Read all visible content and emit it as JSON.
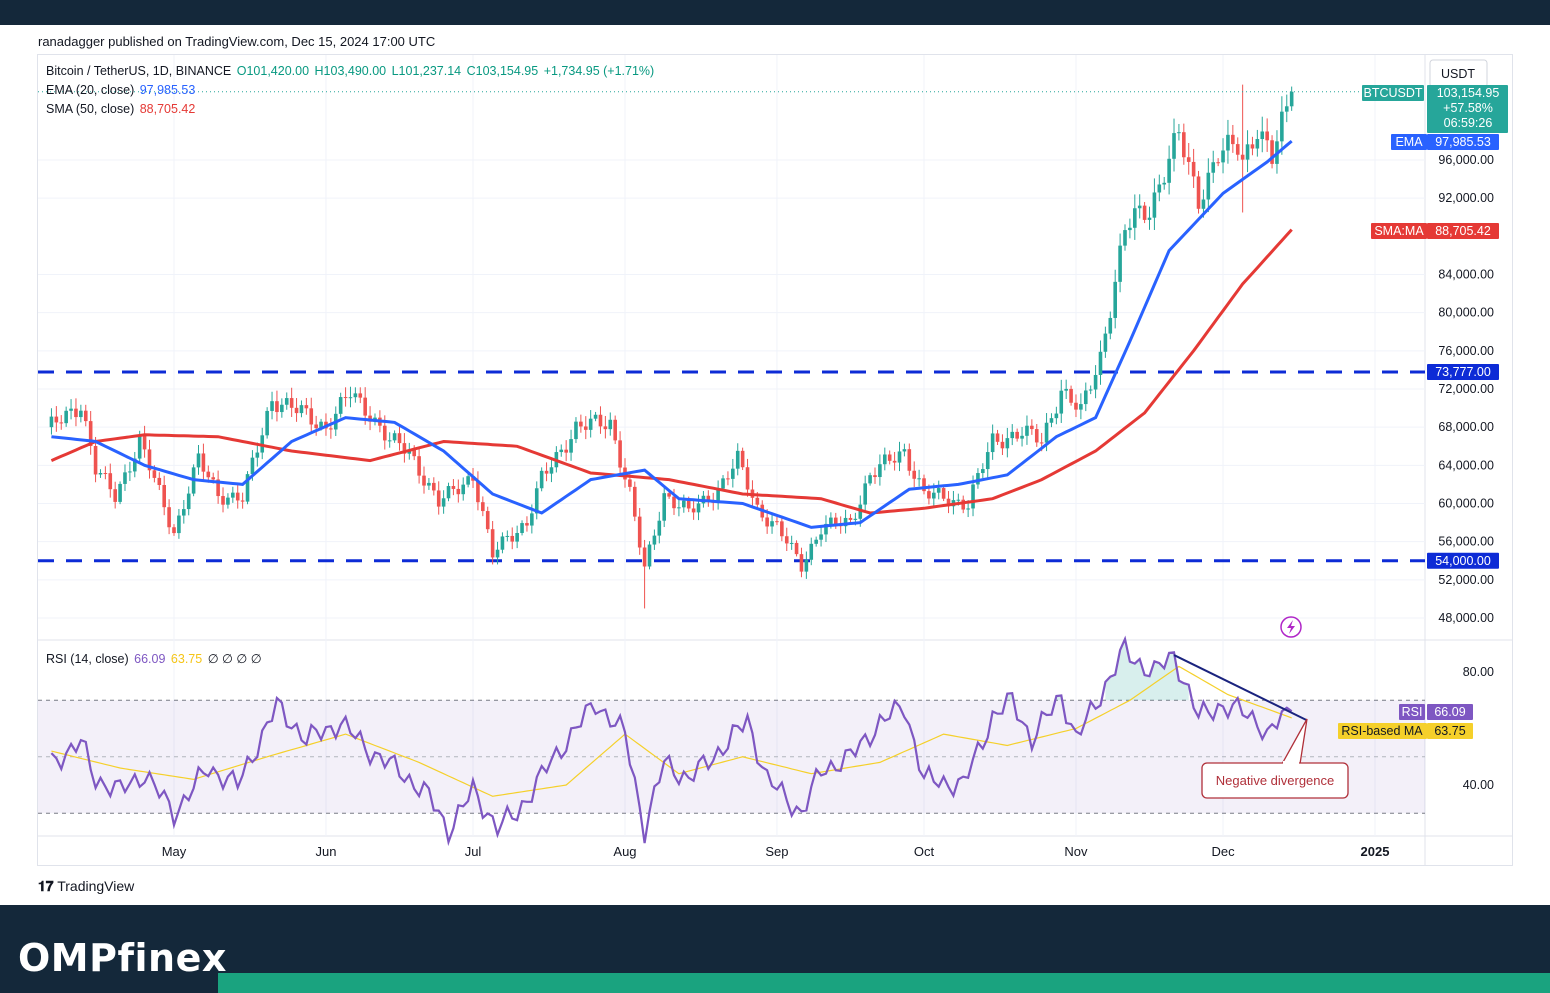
{
  "header": {
    "published": "ranadagger published on TradingView.com, Dec 15, 2024 17:00 UTC"
  },
  "legend": {
    "symbol": "Bitcoin / TetherUS, 1D, BINANCE",
    "open": "O101,420.00",
    "high": "H103,490.00",
    "low": "L101,237.14",
    "close": "C103,154.95",
    "change": "+1,734.95 (+1.71%)",
    "ema_label": "EMA (20, close)",
    "ema_value": "97,985.53",
    "sma_label": "SMA (50, close)",
    "sma_value": "88,705.42",
    "rsi_label": "RSI (14, close)",
    "rsi_value": "66.09",
    "rsi_ma_value": "63.75",
    "rsi_extra": "∅ ∅ ∅ ∅"
  },
  "price_axis": {
    "currency": "USDT",
    "ticks": [
      "96,000.00",
      "92,000.00",
      "84,000.00",
      "80,000.00",
      "76,000.00",
      "72,000.00",
      "68,000.00",
      "64,000.00",
      "60,000.00",
      "56,000.00",
      "52,000.00",
      "48,000.00"
    ],
    "tick_values": [
      96000,
      92000,
      84000,
      80000,
      76000,
      72000,
      68000,
      64000,
      60000,
      56000,
      52000,
      48000
    ]
  },
  "price_tags": {
    "symbol_tag": "BTCUSDT",
    "last_price": "103,154.95",
    "pct_change": "+57.58%",
    "countdown": "06:59:26",
    "ema_tag": "EMA",
    "ema_value": "97,985.53",
    "sma_tag": "SMA:MA",
    "sma_value": "88,705.42",
    "resistance": "73,777.00",
    "support": "54,000.00"
  },
  "rsi_axis": {
    "ticks": [
      "80.00",
      "40.00"
    ],
    "rsi_tag": "RSI",
    "rsi_value": "66.09",
    "ma_tag": "RSI-based MA",
    "ma_value": "63.75"
  },
  "time_axis": [
    "May",
    "Jun",
    "Jul",
    "Aug",
    "Sep",
    "Oct",
    "Nov",
    "Dec",
    "2025"
  ],
  "annotation": {
    "divergence": "Negative divergence"
  },
  "footer": {
    "tv": "TradingView",
    "brand": "OMPfinex"
  },
  "colors": {
    "up": "#26a69a",
    "down": "#ef5350",
    "ema": "#2962ff",
    "sma": "#e53935",
    "level": "#0d2bd6",
    "rsi": "#7e57c2",
    "rsi_ma": "#f5d02a",
    "trend": "#1a237e"
  },
  "chart_data": {
    "type": "candlestick",
    "title": "Bitcoin / TetherUS, 1D, BINANCE",
    "x_range": [
      "2024-04-06",
      "2024-12-15"
    ],
    "ylim": [
      46000,
      106000
    ],
    "horizontal_levels": [
      73777,
      54000
    ],
    "price_path": [
      [
        "2024-04-06",
        68000
      ],
      [
        "2024-04-12",
        70500
      ],
      [
        "2024-04-15",
        63500
      ],
      [
        "2024-04-19",
        60800
      ],
      [
        "2024-04-24",
        66500
      ],
      [
        "2024-05-01",
        57000
      ],
      [
        "2024-05-06",
        64500
      ],
      [
        "2024-05-10",
        61000
      ],
      [
        "2024-05-15",
        60500
      ],
      [
        "2024-05-21",
        71000
      ],
      [
        "2024-05-27",
        69500
      ],
      [
        "2024-06-01",
        68000
      ],
      [
        "2024-06-06",
        71500
      ],
      [
        "2024-06-10",
        69500
      ],
      [
        "2024-06-14",
        66500
      ],
      [
        "2024-06-18",
        65500
      ],
      [
        "2024-06-24",
        60000
      ],
      [
        "2024-07-01",
        63000
      ],
      [
        "2024-07-05",
        54500
      ],
      [
        "2024-07-08",
        56500
      ],
      [
        "2024-07-12",
        58000
      ],
      [
        "2024-07-15",
        62500
      ],
      [
        "2024-07-22",
        68000
      ],
      [
        "2024-07-29",
        68500
      ],
      [
        "2024-08-02",
        61000
      ],
      [
        "2024-08-05",
        53000
      ],
      [
        "2024-08-09",
        61000
      ],
      [
        "2024-08-14",
        59000
      ],
      [
        "2024-08-20",
        61500
      ],
      [
        "2024-08-24",
        64500
      ],
      [
        "2024-08-28",
        59500
      ],
      [
        "2024-09-01",
        57500
      ],
      [
        "2024-09-06",
        53500
      ],
      [
        "2024-09-10",
        57500
      ],
      [
        "2024-09-16",
        58000
      ],
      [
        "2024-09-20",
        63000
      ],
      [
        "2024-09-27",
        65500
      ],
      [
        "2024-10-01",
        61000
      ],
      [
        "2024-10-10",
        60000
      ],
      [
        "2024-10-15",
        66500
      ],
      [
        "2024-10-21",
        67500
      ],
      [
        "2024-10-25",
        66500
      ],
      [
        "2024-10-29",
        72000
      ],
      [
        "2024-11-02",
        69500
      ],
      [
        "2024-11-06",
        75500
      ],
      [
        "2024-11-11",
        88500
      ],
      [
        "2024-11-13",
        90000
      ],
      [
        "2024-11-16",
        91000
      ],
      [
        "2024-11-22",
        98500
      ],
      [
        "2024-11-26",
        92000
      ],
      [
        "2024-11-30",
        96500
      ],
      [
        "2024-12-04",
        97500
      ],
      [
        "2024-12-05",
        96000
      ],
      [
        "2024-12-08",
        99500
      ],
      [
        "2024-12-11",
        96000
      ],
      [
        "2024-12-15",
        103154.95
      ]
    ],
    "ema20_path": [
      [
        "2024-04-06",
        67000
      ],
      [
        "2024-04-15",
        66500
      ],
      [
        "2024-04-25",
        64000
      ],
      [
        "2024-05-05",
        62500
      ],
      [
        "2024-05-15",
        62000
      ],
      [
        "2024-05-25",
        66500
      ],
      [
        "2024-06-05",
        69000
      ],
      [
        "2024-06-15",
        68500
      ],
      [
        "2024-06-25",
        65500
      ],
      [
        "2024-07-05",
        61000
      ],
      [
        "2024-07-15",
        59000
      ],
      [
        "2024-07-25",
        62500
      ],
      [
        "2024-08-05",
        63500
      ],
      [
        "2024-08-12",
        60500
      ],
      [
        "2024-08-25",
        60000
      ],
      [
        "2024-09-08",
        57500
      ],
      [
        "2024-09-18",
        58000
      ],
      [
        "2024-09-28",
        61500
      ],
      [
        "2024-10-08",
        62000
      ],
      [
        "2024-10-18",
        63000
      ],
      [
        "2024-10-28",
        67000
      ],
      [
        "2024-11-05",
        69000
      ],
      [
        "2024-11-12",
        77000
      ],
      [
        "2024-11-20",
        86500
      ],
      [
        "2024-12-01",
        92500
      ],
      [
        "2024-12-10",
        95800
      ],
      [
        "2024-12-15",
        97985.53
      ]
    ],
    "sma50_path": [
      [
        "2024-04-06",
        64500
      ],
      [
        "2024-04-15",
        66500
      ],
      [
        "2024-04-25",
        67200
      ],
      [
        "2024-05-10",
        67000
      ],
      [
        "2024-05-25",
        65500
      ],
      [
        "2024-06-10",
        64500
      ],
      [
        "2024-06-25",
        66500
      ],
      [
        "2024-07-10",
        66000
      ],
      [
        "2024-07-25",
        63200
      ],
      [
        "2024-08-10",
        62500
      ],
      [
        "2024-08-25",
        61000
      ],
      [
        "2024-09-10",
        60500
      ],
      [
        "2024-09-20",
        59000
      ],
      [
        "2024-10-01",
        59500
      ],
      [
        "2024-10-15",
        60500
      ],
      [
        "2024-10-25",
        62500
      ],
      [
        "2024-11-05",
        65500
      ],
      [
        "2024-11-15",
        69500
      ],
      [
        "2024-11-25",
        76000
      ],
      [
        "2024-12-05",
        83000
      ],
      [
        "2024-12-15",
        88705.42
      ]
    ],
    "rsi_ylim": [
      22,
      92
    ],
    "rsi_band": [
      70,
      30
    ],
    "rsi_path": [
      [
        "2024-04-06",
        48
      ],
      [
        "2024-04-12",
        55
      ],
      [
        "2024-04-15",
        42
      ],
      [
        "2024-04-20",
        38
      ],
      [
        "2024-04-25",
        44
      ],
      [
        "2024-05-01",
        30
      ],
      [
        "2024-05-08",
        46
      ],
      [
        "2024-05-14",
        40
      ],
      [
        "2024-05-22",
        68
      ],
      [
        "2024-05-28",
        56
      ],
      [
        "2024-06-04",
        62
      ],
      [
        "2024-06-10",
        52
      ],
      [
        "2024-06-16",
        45
      ],
      [
        "2024-06-22",
        36
      ],
      [
        "2024-06-26",
        24
      ],
      [
        "2024-07-01",
        38
      ],
      [
        "2024-07-06",
        25
      ],
      [
        "2024-07-10",
        30
      ],
      [
        "2024-07-16",
        46
      ],
      [
        "2024-07-22",
        60
      ],
      [
        "2024-07-26",
        69
      ],
      [
        "2024-08-01",
        58
      ],
      [
        "2024-08-05",
        24
      ],
      [
        "2024-08-09",
        48
      ],
      [
        "2024-08-14",
        42
      ],
      [
        "2024-08-22",
        55
      ],
      [
        "2024-08-26",
        63
      ],
      [
        "2024-08-30",
        42
      ],
      [
        "2024-09-06",
        30
      ],
      [
        "2024-09-10",
        45
      ],
      [
        "2024-09-16",
        50
      ],
      [
        "2024-09-22",
        62
      ],
      [
        "2024-09-27",
        68
      ],
      [
        "2024-10-01",
        42
      ],
      [
        "2024-10-09",
        40
      ],
      [
        "2024-10-15",
        64
      ],
      [
        "2024-10-19",
        70
      ],
      [
        "2024-10-23",
        56
      ],
      [
        "2024-10-29",
        72
      ],
      [
        "2024-11-01",
        56
      ],
      [
        "2024-11-06",
        72
      ],
      [
        "2024-11-11",
        88
      ],
      [
        "2024-11-13",
        84
      ],
      [
        "2024-11-17",
        80
      ],
      [
        "2024-11-21",
        86
      ],
      [
        "2024-11-26",
        64
      ],
      [
        "2024-11-30",
        68
      ],
      [
        "2024-12-05",
        66
      ],
      [
        "2024-12-08",
        63
      ],
      [
        "2024-12-10",
        57
      ],
      [
        "2024-12-13",
        64
      ],
      [
        "2024-12-15",
        66.09
      ]
    ],
    "rsi_ma_path": [
      [
        "2024-04-06",
        52
      ],
      [
        "2024-04-20",
        46
      ],
      [
        "2024-05-05",
        42
      ],
      [
        "2024-05-20",
        50
      ],
      [
        "2024-06-05",
        58
      ],
      [
        "2024-06-20",
        48
      ],
      [
        "2024-07-05",
        36
      ],
      [
        "2024-07-20",
        40
      ],
      [
        "2024-08-01",
        58
      ],
      [
        "2024-08-12",
        44
      ],
      [
        "2024-08-25",
        50
      ],
      [
        "2024-09-08",
        44
      ],
      [
        "2024-09-22",
        48
      ],
      [
        "2024-10-05",
        58
      ],
      [
        "2024-10-18",
        54
      ],
      [
        "2024-11-01",
        60
      ],
      [
        "2024-11-12",
        70
      ],
      [
        "2024-11-22",
        82
      ],
      [
        "2024-12-02",
        72
      ],
      [
        "2024-12-15",
        63.75
      ]
    ],
    "divergence_line": [
      [
        "2024-11-21",
        86
      ],
      [
        "2024-12-18",
        63
      ]
    ]
  }
}
